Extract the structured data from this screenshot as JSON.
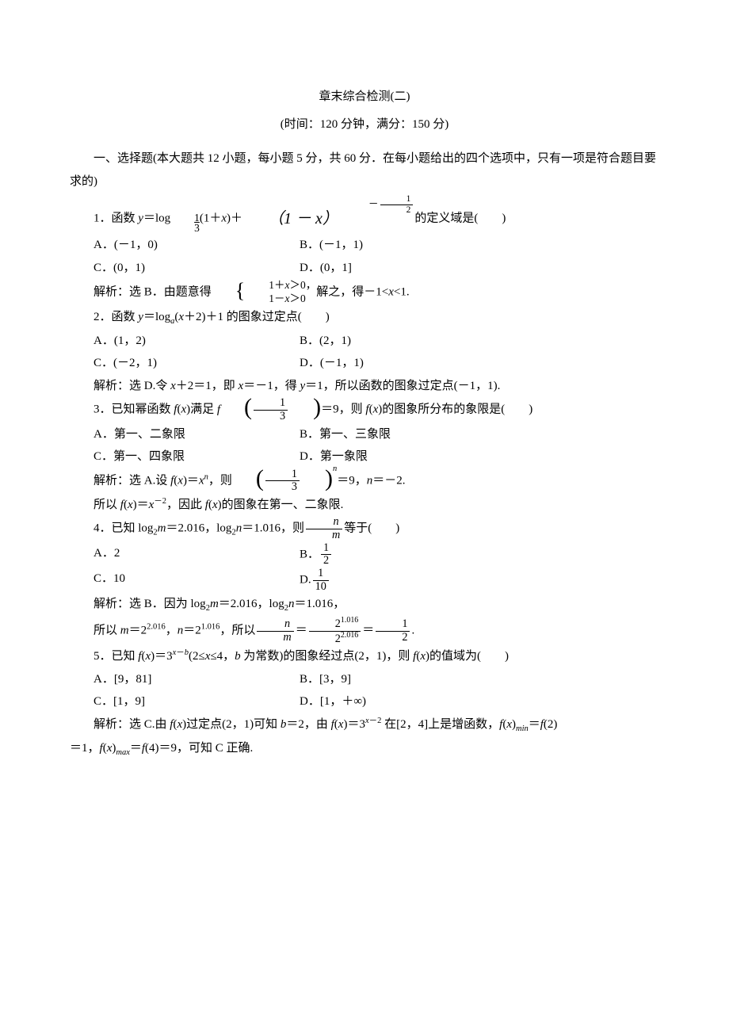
{
  "title": "章末综合检测(二)",
  "subtitle": "(时间：120 分钟，满分：150 分)",
  "intro": "一、选择题(本大题共 12 小题，每小题 5 分，共 60 分．在每小题给出的四个选项中，只有一项是符合题目要求的)",
  "q1": {
    "prefix": "1．函数 ",
    "eq_a": "y",
    "eq_b": "＝log",
    "eq_sub_num": "1",
    "eq_sub_den": "3",
    "eq_c": "(1＋",
    "eq_d": "x",
    "eq_e": ")＋",
    "exp_base": "（1 － x）",
    "exp_neg": "－",
    "exp_num": "1",
    "exp_den": "2",
    "suffix": "的定义域是(　　)",
    "a": "A．(－1，0)",
    "b": "B．(－1，1)",
    "c": "C．(0，1)",
    "d": "D．(0，1]",
    "sol_a": "解析：选 B．由题意得",
    "sol_brace": "{",
    "sys1a": "1＋",
    "sys1b": "x",
    "sys1c": "＞0",
    "sys1end": "，",
    "sys2a": "1－",
    "sys2b": "x",
    "sys2c": "＞0",
    "sol_b": "解之，得－1<",
    "sol_c": "x",
    "sol_d": "<1."
  },
  "q2": {
    "stem_a": "2．函数 ",
    "stem_b": "y",
    "stem_c": "＝log",
    "stem_sub": "a",
    "stem_d": "(",
    "stem_e": "x",
    "stem_f": "＋2)＋1 的图象过定点(　　)",
    "a": "A．(1，2)",
    "b": "B．(2，1)",
    "c": "C．(－2，1)",
    "d": "D．(－1，1)",
    "sol_a": "解析：选 D.令 ",
    "sol_b": "x",
    "sol_c": "＋2＝1，即 ",
    "sol_d": "x",
    "sol_e": "＝－1，得 ",
    "sol_f": "y",
    "sol_g": "＝1，所以函数的图象过定点(－1，1)."
  },
  "q3": {
    "stem_a": "3．已知幂函数 ",
    "stem_b": "f",
    "stem_c": "(",
    "stem_d": "x",
    "stem_e": ")满足 ",
    "stem_f": "f",
    "frac_num": "1",
    "frac_den": "3",
    "stem_g": "＝9，则 ",
    "stem_h": "f",
    "stem_i": "(",
    "stem_j": "x",
    "stem_k": ")的图象所分布的象限是(　　)",
    "a": "A．第一、二象限",
    "b": "B．第一、三象限",
    "c": "C．第一、四象限",
    "d": "D．第一象限",
    "sol_a": "解析：选 A.设 ",
    "sol_b": "f",
    "sol_c": "(",
    "sol_d": "x",
    "sol_e": ")＝",
    "sol_f": "x",
    "sol_g": "n",
    "sol_h": "，则",
    "sol_exp": "n",
    "sol_i": "＝9，",
    "sol_j": "n",
    "sol_k": "＝－2.",
    "sol2_a": "所以 ",
    "sol2_b": "f",
    "sol2_c": "(",
    "sol2_d": "x",
    "sol2_e": ")＝",
    "sol2_f": "x",
    "sol2_g": "－2",
    "sol2_h": "，因此 ",
    "sol2_i": "f",
    "sol2_j": "(",
    "sol2_k": "x",
    "sol2_l": ")的图象在第一、二象限."
  },
  "q4": {
    "stem_a": "4．已知 log",
    "stem_b": "2",
    "stem_c": "m",
    "stem_d": "＝2.016，log",
    "stem_e": "2",
    "stem_f": "n",
    "stem_g": "＝1.016，则",
    "frac_num": "n",
    "frac_den": "m",
    "stem_h": "等于(　　)",
    "a": "A．2",
    "b_pre": "B．",
    "b_num": "1",
    "b_den": "2",
    "c": "C．10",
    "d_pre": "D.",
    "d_num": "1",
    "d_den": "10",
    "sol_a": "解析：选 B．因为 log",
    "sol_b": "2",
    "sol_c": "m",
    "sol_d": "＝2.016，log",
    "sol_e": "2",
    "sol_f": "n",
    "sol_g": "＝1.016，",
    "sol2_a": "所以 ",
    "sol2_b": "m",
    "sol2_c": "＝2",
    "sol2_d": "2.016",
    "sol2_e": "，",
    "sol2_f": "n",
    "sol2_g": "＝2",
    "sol2_h": "1.016",
    "sol2_i": "，所以",
    "fr1_num": "n",
    "fr1_den": "m",
    "eq": "＝",
    "fr2_num_a": "2",
    "fr2_num_b": "1.016",
    "fr2_den_a": "2",
    "fr2_den_b": "2.016",
    "fr3_num": "1",
    "fr3_den": "2",
    "sol2_end": "."
  },
  "q5": {
    "stem_a": "5．已知 ",
    "stem_b": "f",
    "stem_c": "(",
    "stem_d": "x",
    "stem_e": ")＝3",
    "stem_f": "x",
    "stem_g": "－",
    "stem_h": "b",
    "stem_i": "(2≤",
    "stem_j": "x",
    "stem_k": "≤4，",
    "stem_l": "b",
    "stem_m": " 为常数)的图象经过点(2，1)，则 ",
    "stem_n": "f",
    "stem_o": "(",
    "stem_p": "x",
    "stem_q": ")的值域为(　　)",
    "a": "A．[9，81]",
    "b": "B．[3，9]",
    "c": "C．[1，9]",
    "d": "D．[1，＋∞)",
    "sol_a": "解析：选 C.由 ",
    "sol_b": "f",
    "sol_c": "(",
    "sol_d": "x",
    "sol_e": ")过定点(2，1)可知 ",
    "sol_f": "b",
    "sol_g": "＝2，由 ",
    "sol_h": "f",
    "sol_i": "(",
    "sol_j": "x",
    "sol_k": ")＝3",
    "sol_l": "x",
    "sol_m": "－2",
    "sol_n": " 在[2，4]上是增函数，",
    "sol_o": "f",
    "sol_p": "(",
    "sol_q": "x",
    "sol_r": ")",
    "sol_s": "min",
    "sol_t": "＝",
    "sol_u": "f",
    "sol_v": "(2)",
    "sol2_a": "＝1，",
    "sol2_b": "f",
    "sol2_c": "(",
    "sol2_d": "x",
    "sol2_e": ")",
    "sol2_f": "max",
    "sol2_g": "＝",
    "sol2_h": "f",
    "sol2_i": "(4)＝9，可知 C 正确."
  }
}
